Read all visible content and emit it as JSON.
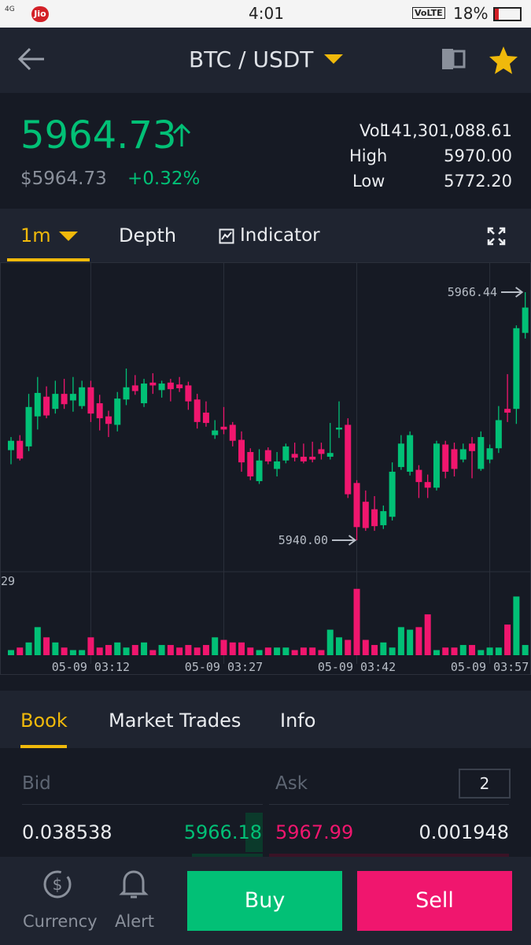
{
  "status_bar": {
    "network": "4G",
    "carrier": "Jio",
    "time": "4:01",
    "volte": "VoLTE",
    "battery": "18%"
  },
  "header": {
    "pair": "BTC / USDT"
  },
  "ticker": {
    "price": "5964.73",
    "usd_price": "$5964.73",
    "change": "+0.32%",
    "vol_label": "Vol",
    "vol": "141,301,088.61",
    "high_label": "High",
    "high": "5970.00",
    "low_label": "Low",
    "low": "5772.20"
  },
  "chart_tabs": [
    "1m",
    "Depth",
    "Indicator"
  ],
  "chart_data": {
    "type": "candlestick",
    "up_color": "#02c076",
    "down_color": "#f0166e",
    "categories": [
      null,
      null,
      null,
      null,
      null,
      null,
      null,
      null,
      null,
      "05-09 03:12",
      null,
      null,
      null,
      null,
      null,
      null,
      null,
      null,
      null,
      null,
      null,
      null,
      null,
      null,
      "05-09 03:27",
      null,
      null,
      null,
      null,
      null,
      null,
      null,
      null,
      null,
      null,
      null,
      null,
      null,
      null,
      "05-09 03:42",
      null,
      null,
      null,
      null,
      null,
      null,
      null,
      null,
      null,
      null,
      null,
      null,
      null,
      null,
      "05-09 03:57",
      null,
      null,
      null,
      null
    ],
    "open": [
      5949.6,
      5950.6,
      5950.0,
      5953.2,
      5955.3,
      5954.0,
      5955.6,
      5954.9,
      5954.3,
      5956.3,
      5954.6,
      5953.2,
      5952.3,
      5955.0,
      5956.5,
      5954.6,
      5956.8,
      5956.0,
      5956.8,
      5956.6,
      5956.5,
      5955.0,
      5953.6,
      5951.2,
      5952.1,
      5952.3,
      5950.7,
      5949.4,
      5946.3,
      5949.6,
      5947.6,
      5948.5,
      5949.2,
      5948.9,
      5948.9,
      5949.7,
      5948.9,
      5951.8,
      5952.3,
      5946.1,
      5944.1,
      5943.3,
      5941.6,
      5942.5,
      5947.8,
      5947.3,
      5947.5,
      5946.2,
      5945.6,
      5950.2,
      5949.7,
      5948.6,
      5950.3,
      5947.6,
      5948.6,
      5949.8,
      5954.0,
      5954.0,
      5962.1
    ],
    "high": [
      5951.0,
      5951.2,
      5955.6,
      5957.4,
      5956.4,
      5957.0,
      5957.2,
      5957.4,
      5957.0,
      5957.0,
      5955.5,
      5953.8,
      5955.8,
      5958.3,
      5957.6,
      5957.2,
      5957.8,
      5957.0,
      5957.2,
      5957.4,
      5956.9,
      5955.6,
      5954.8,
      5952.8,
      5954.2,
      5952.6,
      5951.6,
      5949.8,
      5949.7,
      5949.9,
      5949.4,
      5950.3,
      5950.4,
      5950.3,
      5950.5,
      5950.4,
      5952.5,
      5954.8,
      5953.0,
      5946.4,
      5945.3,
      5944.7,
      5943.7,
      5948.3,
      5951.2,
      5951.6,
      5948.0,
      5947.0,
      5950.6,
      5950.6,
      5950.4,
      5950.3,
      5951.0,
      5951.6,
      5950.2,
      5954.3,
      5957.7,
      5962.9,
      5966.44
    ],
    "low": [
      5948.1,
      5948.5,
      5949.5,
      5951.8,
      5953.0,
      5953.5,
      5954.0,
      5953.7,
      5954.0,
      5952.6,
      5951.7,
      5951.0,
      5951.6,
      5954.4,
      5955.5,
      5954.2,
      5955.6,
      5955.2,
      5954.8,
      5955.8,
      5953.9,
      5951.9,
      5952.1,
      5950.8,
      5951.3,
      5950.0,
      5947.3,
      5946.4,
      5946.0,
      5948.1,
      5946.8,
      5948.2,
      5948.4,
      5948.2,
      5948.3,
      5948.6,
      5948.6,
      5950.9,
      5944.5,
      5940,
      5941.0,
      5941.0,
      5941.2,
      5942.1,
      5947.5,
      5946.9,
      5944.5,
      5944.5,
      5945.3,
      5946.6,
      5946.8,
      5948.3,
      5946.6,
      5947.4,
      5948.2,
      5949.3,
      5952.6,
      5952.4,
      5961.5
    ],
    "close": [
      5950.6,
      5948.7,
      5954.2,
      5955.7,
      5953.3,
      5955.6,
      5954.5,
      5955.6,
      5956.3,
      5953.5,
      5953.0,
      5952.4,
      5955.1,
      5956.3,
      5955.9,
      5956.7,
      5956.5,
      5956.7,
      5956.1,
      5956.2,
      5954.8,
      5952.6,
      5952.5,
      5951.7,
      5951.8,
      5950.6,
      5948.3,
      5946.8,
      5948.5,
      5948.4,
      5948.4,
      5950.0,
      5948.8,
      5948.4,
      5948.6,
      5949.2,
      5949.3,
      5952.0,
      5944.9,
      5941.4,
      5941.3,
      5941.5,
      5943.1,
      5947.3,
      5950.3,
      5951.2,
      5946.2,
      5945.6,
      5950.3,
      5947.3,
      5947.6,
      5949.7,
      5949.5,
      5951.0,
      5949.8,
      5952.8,
      5953.6,
      5962.6,
      5964.8
    ],
    "volume": [
      2,
      3,
      5,
      11,
      7,
      5,
      3,
      2,
      2,
      7,
      3,
      4,
      5,
      3,
      4,
      5,
      2,
      4,
      4,
      3,
      4,
      3,
      4,
      7,
      6,
      5,
      5,
      3,
      2,
      3,
      3,
      3,
      2,
      3,
      3,
      2,
      10,
      7,
      6,
      26,
      6,
      4,
      5,
      3,
      11,
      10,
      11,
      16,
      2,
      3,
      3,
      4,
      4,
      2,
      3,
      3,
      12,
      23,
      4
    ],
    "volume_ylim": [
      0,
      29
    ],
    "volume_yticks": [
      29
    ],
    "high_marker": 5966.44,
    "low_marker": {
      "value": 5940,
      "label": "5940.00"
    }
  },
  "book_tabs": [
    "Book",
    "Market Trades",
    "Info"
  ],
  "book": {
    "bid_label": "Bid",
    "ask_label": "Ask",
    "precision": "2",
    "rows": [
      [
        "0.038538",
        "5966.18",
        "5967.99",
        "0.001948"
      ]
    ]
  },
  "bottom_nav": {
    "currency": "Currency",
    "alert": "Alert",
    "buy": "Buy",
    "sell": "Sell"
  }
}
